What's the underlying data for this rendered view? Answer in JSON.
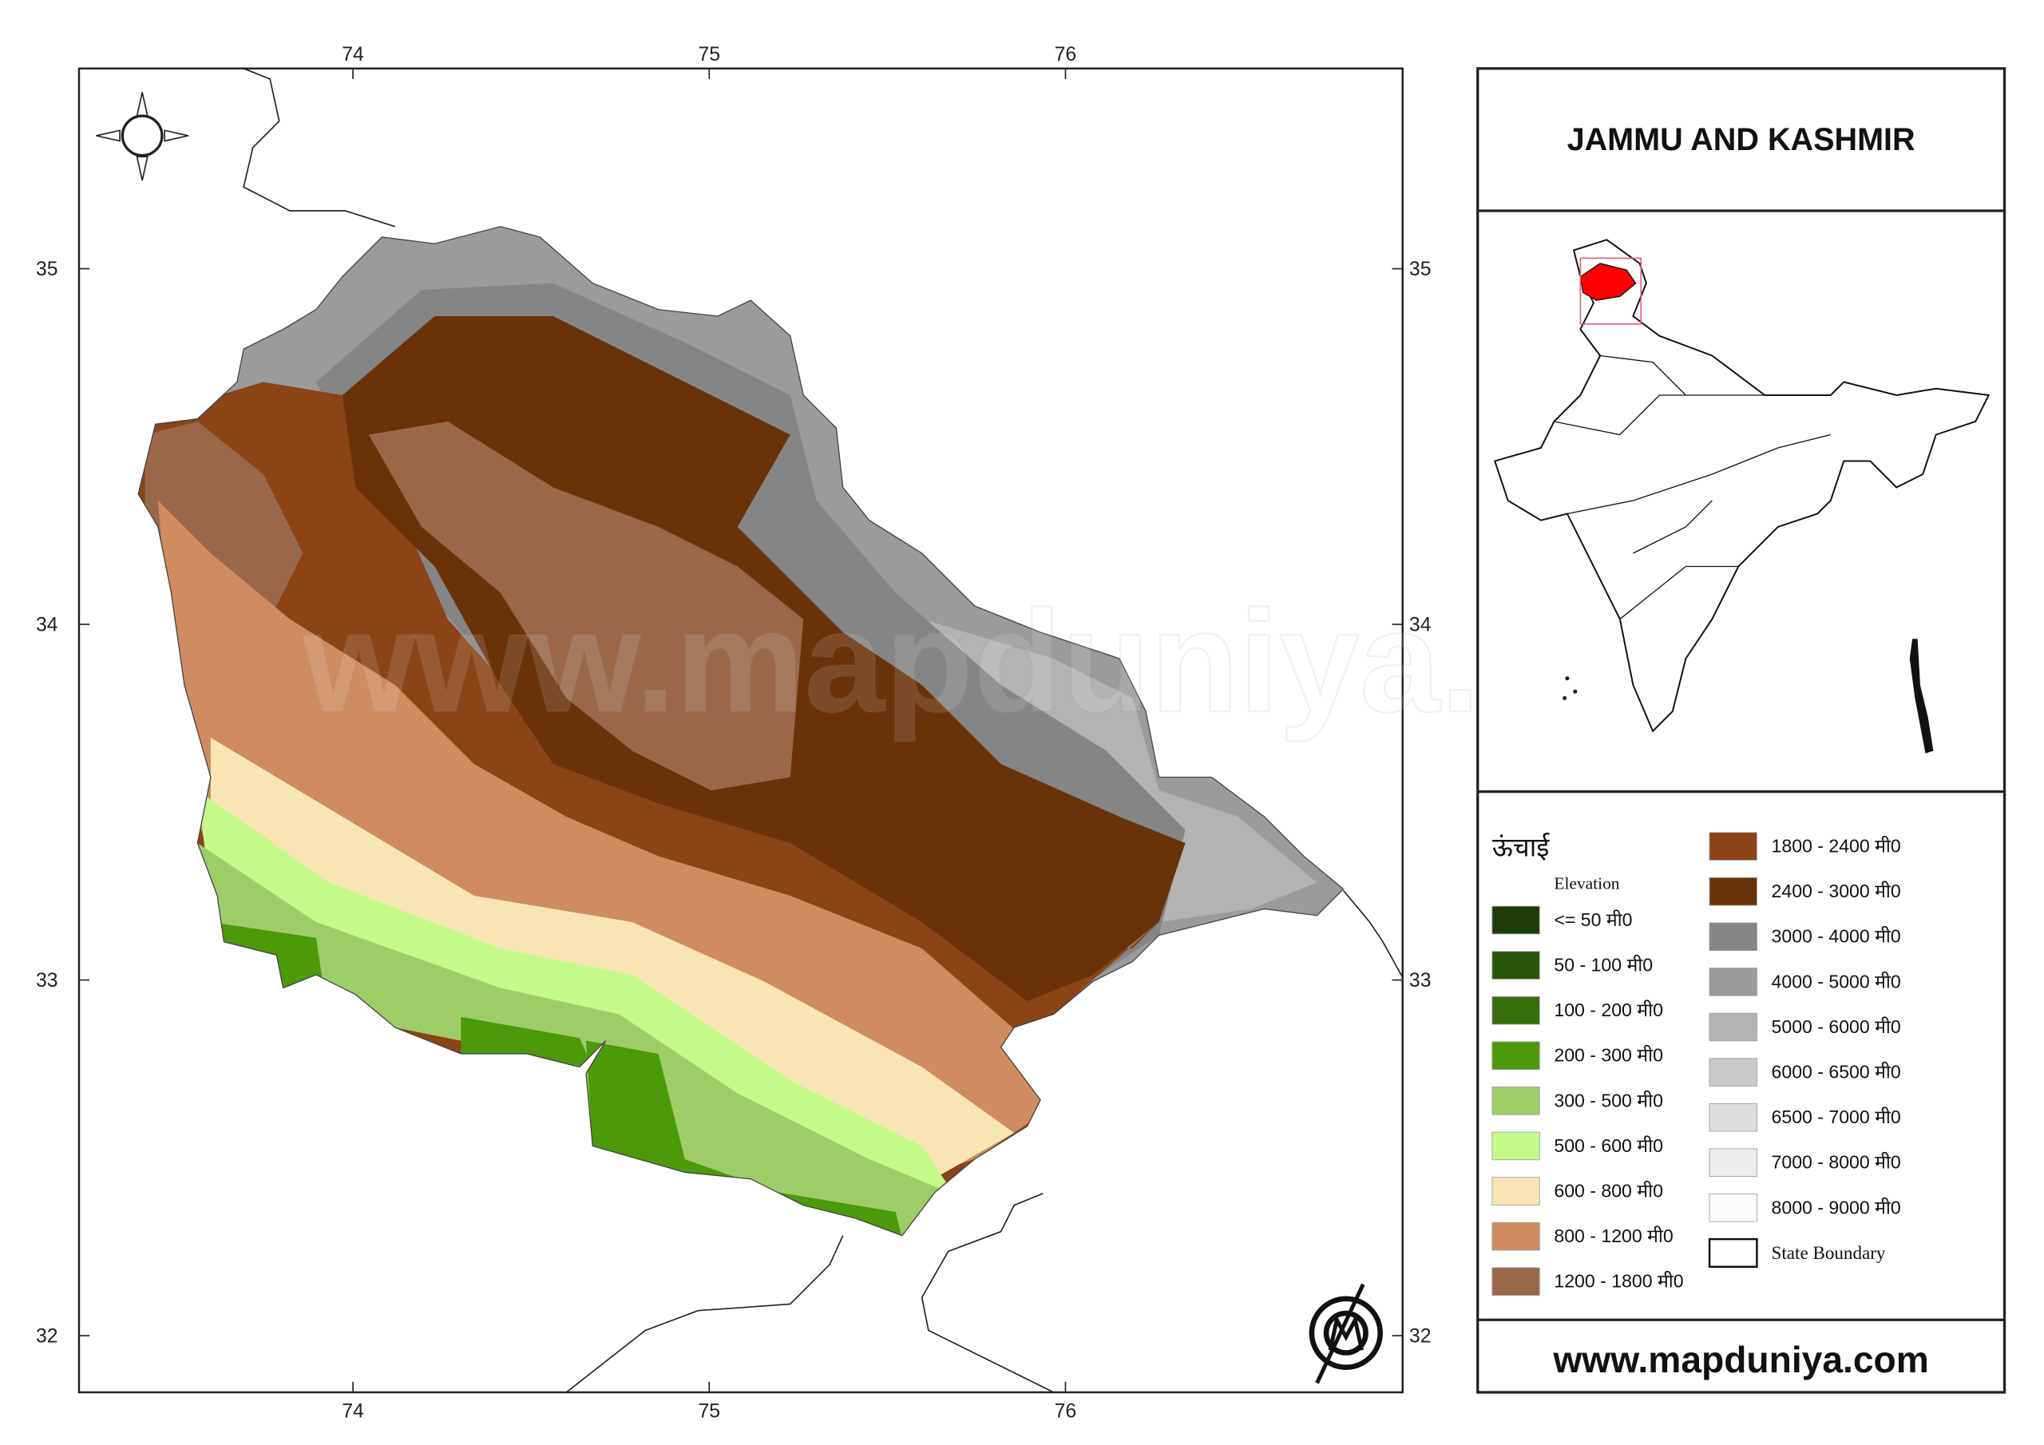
{
  "title": "JAMMU AND KASHMIR",
  "website": "www.mapduniya.com",
  "longitude_ticks": [
    74,
    75,
    76
  ],
  "latitude_ticks": [
    35,
    34,
    33,
    32
  ],
  "legend": {
    "title": "ऊंचाई",
    "subtitle": "Elevation",
    "items": [
      {
        "label": "<= 50 मी0",
        "color": "#1d3a0b"
      },
      {
        "label": "50 - 100 मी0",
        "color": "#2a560a"
      },
      {
        "label": "100 - 200 मी0",
        "color": "#376d0a"
      },
      {
        "label": "200 - 300 मी0",
        "color": "#4c990a"
      },
      {
        "label": "300 - 500 मी0",
        "color": "#9ecd68"
      },
      {
        "label": "500 - 600 मी0",
        "color": "#c4fa8a"
      },
      {
        "label": "600 - 800 मी0",
        "color": "#f9e5b3"
      },
      {
        "label": "800 - 1200 मी0",
        "color": "#cf8c60"
      },
      {
        "label": "1200 - 1800 मी0",
        "color": "#9a6849"
      },
      {
        "label": "1800 - 2400 मी0",
        "color": "#8a4416"
      },
      {
        "label": "2400 - 3000 मी0",
        "color": "#6a3208"
      },
      {
        "label": "3000 - 4000 मी0",
        "color": "#858585"
      },
      {
        "label": "4000 - 5000 मी0",
        "color": "#9b9b9b"
      },
      {
        "label": "5000 - 6000 मी0",
        "color": "#b3b3b3"
      },
      {
        "label": "6000 - 6500 मी0",
        "color": "#c9c9c9"
      },
      {
        "label": "6500 - 7000 मी0",
        "color": "#dddddd"
      },
      {
        "label": "7000 - 8000 मी0",
        "color": "#ededed"
      },
      {
        "label": "8000 - 9000 मी0",
        "color": "#fbfbfb"
      },
      {
        "label": "State Boundary",
        "color": "#ffffff"
      }
    ]
  }
}
